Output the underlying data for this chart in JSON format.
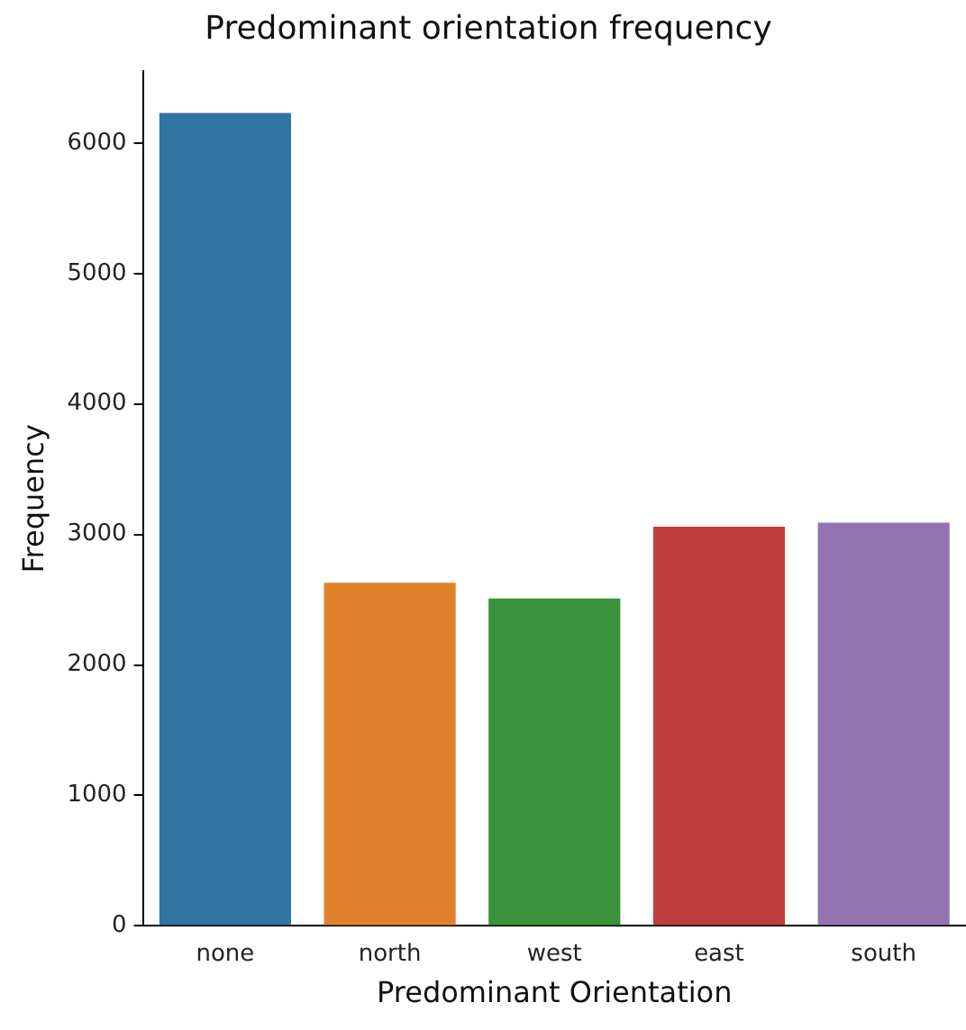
{
  "chart_data": {
    "type": "bar",
    "title": "Predominant orientation frequency",
    "xlabel": "Predominant Orientation",
    "ylabel": "Frequency",
    "categories": [
      "none",
      "north",
      "west",
      "east",
      "south"
    ],
    "values": [
      6230,
      2630,
      2510,
      3060,
      3090
    ],
    "colors": [
      "#3274a1",
      "#e1812c",
      "#3a923a",
      "#c03d3e",
      "#9372b2"
    ],
    "ylim": [
      0,
      6550
    ],
    "yticks": [
      0,
      1000,
      2000,
      3000,
      4000,
      5000,
      6000
    ],
    "grid": false,
    "legend": false
  }
}
